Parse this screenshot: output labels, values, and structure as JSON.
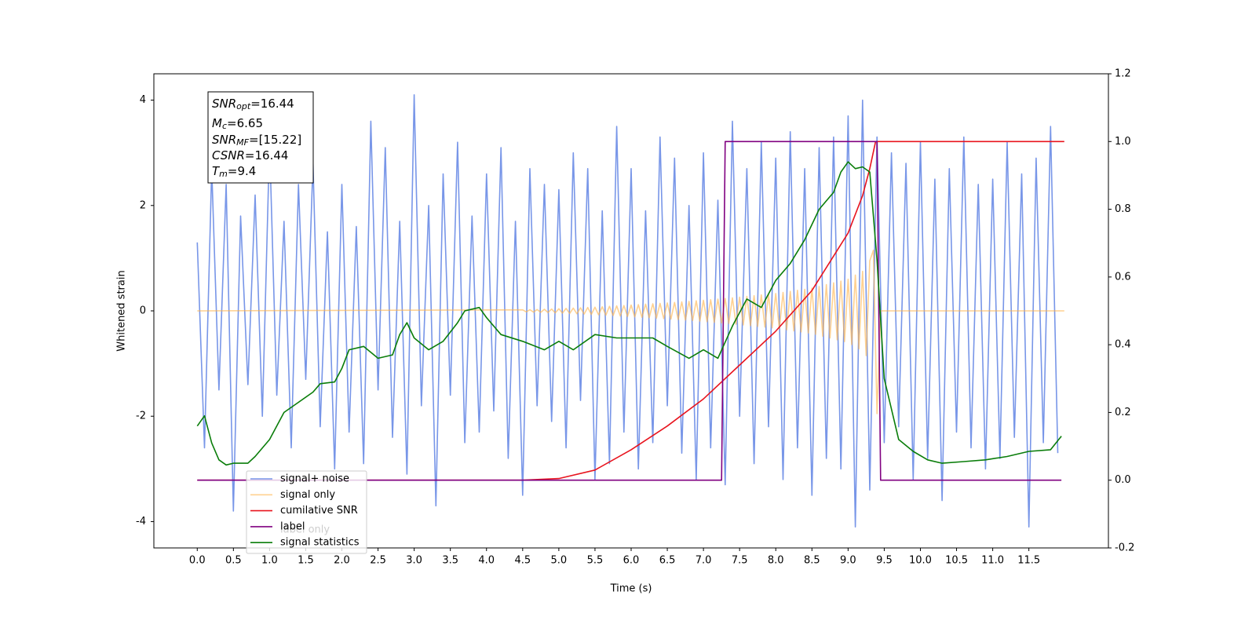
{
  "chart_data": {
    "type": "line",
    "xlabel": "Time (s)",
    "ylabel": "Whitened strain",
    "xlim": [
      -0.6,
      12.6
    ],
    "ylim": [
      -4.5,
      4.5
    ],
    "y2lim": [
      -0.2,
      1.2
    ],
    "xticks": [
      {
        "value": 0,
        "label": "0.0"
      },
      0.5,
      {
        "value": 1,
        "label": "1.0"
      },
      1.5,
      {
        "value": 2,
        "label": "2.0"
      },
      2.5,
      {
        "value": 3,
        "label": "3.0"
      },
      3.5,
      {
        "value": 4,
        "label": "4.0"
      },
      4.5,
      {
        "value": 5,
        "label": "5.0"
      },
      5.5,
      {
        "value": 6,
        "label": "6.0"
      },
      6.5,
      {
        "value": 7,
        "label": "7.0"
      },
      7.5,
      {
        "value": 8,
        "label": "8.0"
      },
      8.5,
      {
        "value": 9,
        "label": "9.0"
      },
      9.5,
      {
        "value": 10,
        "label": "10.0"
      },
      10.5,
      {
        "value": 11,
        "label": "11.0"
      },
      11.5
    ],
    "yticks": [
      -4,
      -2,
      0,
      2,
      4
    ],
    "y2ticks": [
      -0.2,
      {
        "value": 0,
        "label": "0.0"
      },
      0.2,
      0.4,
      0.6,
      0.8,
      {
        "value": 1,
        "label": "1.0"
      },
      1.2
    ],
    "legend": "lower left",
    "legend_overlap_text": "label only",
    "annotation_lines": [
      {
        "main": "SNR",
        "sub": "opt",
        "rest": "=16.44"
      },
      {
        "main": "M",
        "sub": "c",
        "rest": "=6.65"
      },
      {
        "main": "SNR",
        "sub": "MF",
        "rest": "=[15.22]"
      },
      {
        "main": "CSNR",
        "rest": "=16.44"
      },
      {
        "main": "T",
        "sub": "m",
        "rest": "=9.4"
      }
    ],
    "series": [
      {
        "name": "signal+ noise",
        "color": "#7896e8",
        "axis": "y",
        "x": [
          0,
          0.1,
          0.2,
          0.3,
          0.4,
          0.5,
          0.6,
          0.7,
          0.8,
          0.9,
          1,
          1.1,
          1.2,
          1.3,
          1.4,
          1.5,
          1.6,
          1.7,
          1.8,
          1.9,
          2,
          2.1,
          2.2,
          2.3,
          2.4,
          2.5,
          2.6,
          2.7,
          2.8,
          2.9,
          3,
          3.1,
          3.2,
          3.3,
          3.4,
          3.5,
          3.6,
          3.7,
          3.8,
          3.9,
          4,
          4.1,
          4.2,
          4.3,
          4.4,
          4.5,
          4.6,
          4.7,
          4.8,
          4.9,
          5,
          5.1,
          5.2,
          5.3,
          5.4,
          5.5,
          5.6,
          5.7,
          5.8,
          5.9,
          6,
          6.1,
          6.2,
          6.3,
          6.4,
          6.5,
          6.6,
          6.7,
          6.8,
          6.9,
          7,
          7.1,
          7.2,
          7.3,
          7.4,
          7.5,
          7.6,
          7.7,
          7.8,
          7.9,
          8,
          8.1,
          8.2,
          8.3,
          8.4,
          8.5,
          8.6,
          8.7,
          8.8,
          8.9,
          9,
          9.1,
          9.2,
          9.3,
          9.4,
          9.5,
          9.6,
          9.7,
          9.8,
          9.9,
          10,
          10.1,
          10.2,
          10.3,
          10.4,
          10.5,
          10.6,
          10.7,
          10.8,
          10.9,
          11,
          11.1,
          11.2,
          11.3,
          11.4,
          11.5,
          11.6,
          11.7,
          11.8,
          11.9
        ],
        "values": [
          1.3,
          -2.6,
          2.7,
          -1.5,
          2.4,
          -3.8,
          1.8,
          -1.4,
          2.2,
          -2.0,
          3.2,
          -1.6,
          1.7,
          -2.6,
          2.4,
          -1.3,
          2.8,
          -2.2,
          1.5,
          -3.0,
          2.4,
          -2.3,
          1.6,
          -2.9,
          3.6,
          -1.5,
          3.1,
          -2.4,
          1.7,
          -3.1,
          4.1,
          -1.8,
          2.0,
          -3.7,
          2.6,
          -1.6,
          3.2,
          -2.5,
          1.8,
          -2.3,
          2.6,
          -1.9,
          3.1,
          -2.8,
          1.7,
          -3.5,
          2.7,
          -1.8,
          2.4,
          -2.1,
          2.3,
          -2.6,
          3.0,
          -1.7,
          2.7,
          -3.2,
          1.9,
          -2.9,
          3.5,
          -2.3,
          2.7,
          -3.0,
          1.9,
          -2.5,
          3.3,
          -1.8,
          2.9,
          -2.7,
          2.0,
          -3.2,
          3.0,
          -2.6,
          2.1,
          -3.3,
          3.6,
          -2.0,
          2.7,
          -2.9,
          3.2,
          -2.2,
          2.9,
          -3.2,
          3.4,
          -2.6,
          2.7,
          -3.5,
          3.1,
          -2.8,
          3.3,
          -3.0,
          3.7,
          -4.1,
          4.0,
          -3.4,
          3.3,
          -2.5,
          3.0,
          -2.2,
          2.8,
          -3.2,
          3.2,
          -2.8,
          2.5,
          -3.6,
          2.7,
          -2.3,
          3.3,
          -2.6,
          2.4,
          -3.0,
          2.5,
          -2.8,
          3.2,
          -2.4,
          2.6,
          -4.1,
          2.9,
          -2.5,
          3.5,
          -2.7
        ]
      },
      {
        "name": "signal only",
        "color": "#ffb347",
        "alpha": 0.6,
        "axis": "y",
        "x": [
          0,
          4.5,
          4.55,
          4.6,
          4.65,
          4.7,
          4.75,
          4.8,
          4.85,
          4.9,
          4.95,
          5,
          5.05,
          5.1,
          5.15,
          5.2,
          5.25,
          5.3,
          5.35,
          5.4,
          5.45,
          5.5,
          5.55,
          5.6,
          5.65,
          5.7,
          5.75,
          5.8,
          5.85,
          5.9,
          5.95,
          6,
          6.05,
          6.1,
          6.15,
          6.2,
          6.25,
          6.3,
          6.35,
          6.4,
          6.45,
          6.5,
          6.55,
          6.6,
          6.65,
          6.7,
          6.75,
          6.8,
          6.85,
          6.9,
          6.95,
          7,
          7.05,
          7.1,
          7.15,
          7.2,
          7.25,
          7.3,
          7.35,
          7.4,
          7.45,
          7.5,
          7.55,
          7.6,
          7.65,
          7.7,
          7.75,
          7.8,
          7.85,
          7.9,
          7.95,
          8,
          8.05,
          8.1,
          8.15,
          8.2,
          8.25,
          8.3,
          8.35,
          8.4,
          8.45,
          8.5,
          8.55,
          8.6,
          8.65,
          8.7,
          8.75,
          8.8,
          8.85,
          8.9,
          8.95,
          9,
          9.05,
          9.1,
          9.15,
          9.2,
          9.25,
          9.3,
          9.35,
          9.4,
          9.45,
          11.99
        ],
        "values": [
          0,
          0.02,
          -0.02,
          0.022,
          -0.024,
          0.026,
          -0.028,
          0.03,
          -0.032,
          0.035,
          -0.038,
          0.04,
          -0.043,
          0.046,
          -0.049,
          0.052,
          -0.055,
          0.058,
          -0.061,
          0.064,
          -0.067,
          0.07,
          -0.074,
          0.078,
          -0.082,
          0.086,
          -0.09,
          0.094,
          -0.098,
          0.102,
          -0.106,
          0.11,
          -0.114,
          0.118,
          -0.122,
          0.126,
          -0.13,
          0.134,
          -0.138,
          0.142,
          -0.146,
          0.15,
          -0.155,
          0.16,
          -0.165,
          0.17,
          -0.175,
          0.18,
          -0.185,
          0.19,
          -0.195,
          0.2,
          -0.206,
          0.212,
          -0.218,
          0.224,
          -0.23,
          0.236,
          -0.242,
          0.248,
          -0.254,
          0.26,
          -0.267,
          0.274,
          -0.281,
          0.288,
          -0.295,
          0.302,
          -0.309,
          0.316,
          -0.323,
          0.33,
          -0.34,
          0.35,
          -0.36,
          0.37,
          -0.38,
          0.39,
          -0.4,
          0.41,
          -0.42,
          0.43,
          -0.447,
          0.464,
          -0.481,
          0.498,
          -0.515,
          0.532,
          -0.549,
          0.566,
          -0.583,
          0.6,
          -0.64,
          0.68,
          -0.72,
          0.75,
          -0.85,
          0.95,
          1.15,
          -1.95,
          0,
          0
        ]
      },
      {
        "name": "cumilative SNR",
        "color": "#e8141e",
        "axis": "y2",
        "x": [
          0,
          4.5,
          5,
          5.5,
          6,
          6.5,
          7,
          7.5,
          8,
          8.5,
          9,
          9.2,
          9.3,
          9.38,
          9.4,
          11.99
        ],
        "values": [
          0,
          0,
          0.005,
          0.03,
          0.09,
          0.16,
          0.24,
          0.34,
          0.44,
          0.56,
          0.73,
          0.84,
          0.92,
          1,
          1,
          1
        ]
      },
      {
        "name": "label",
        "color": "#800080",
        "axis": "y2",
        "x": [
          0,
          7.25,
          7.3,
          9.4,
          9.45,
          11.95
        ],
        "values": [
          0,
          0,
          1,
          1,
          0,
          0
        ]
      },
      {
        "name": "signal statistics",
        "color": "#0a7d0a",
        "axis": "y2",
        "x": [
          0,
          0.1,
          0.2,
          0.3,
          0.4,
          0.5,
          0.7,
          0.8,
          1,
          1.2,
          1.4,
          1.6,
          1.7,
          1.9,
          2,
          2.1,
          2.3,
          2.5,
          2.7,
          2.8,
          2.9,
          3,
          3.2,
          3.4,
          3.6,
          3.7,
          3.9,
          4,
          4.2,
          4.5,
          4.8,
          5,
          5.2,
          5.5,
          5.8,
          6,
          6.3,
          6.5,
          6.8,
          7,
          7.2,
          7.4,
          7.6,
          7.8,
          8,
          8.2,
          8.4,
          8.6,
          8.8,
          8.9,
          9,
          9.1,
          9.2,
          9.3,
          9.4,
          9.5,
          9.7,
          9.9,
          10.1,
          10.3,
          10.6,
          10.9,
          11.2,
          11.5,
          11.8,
          11.95
        ],
        "values": [
          0.16,
          0.19,
          0.11,
          0.06,
          0.045,
          0.05,
          0.05,
          0.07,
          0.12,
          0.2,
          0.23,
          0.26,
          0.285,
          0.29,
          0.33,
          0.385,
          0.395,
          0.36,
          0.37,
          0.43,
          0.465,
          0.42,
          0.385,
          0.41,
          0.465,
          0.5,
          0.51,
          0.48,
          0.43,
          0.41,
          0.385,
          0.41,
          0.385,
          0.43,
          0.42,
          0.42,
          0.42,
          0.395,
          0.36,
          0.385,
          0.36,
          0.455,
          0.535,
          0.51,
          0.59,
          0.64,
          0.71,
          0.8,
          0.85,
          0.91,
          0.94,
          0.92,
          0.925,
          0.91,
          0.65,
          0.3,
          0.12,
          0.085,
          0.06,
          0.05,
          0.055,
          0.06,
          0.07,
          0.085,
          0.09,
          0.13
        ]
      }
    ]
  }
}
